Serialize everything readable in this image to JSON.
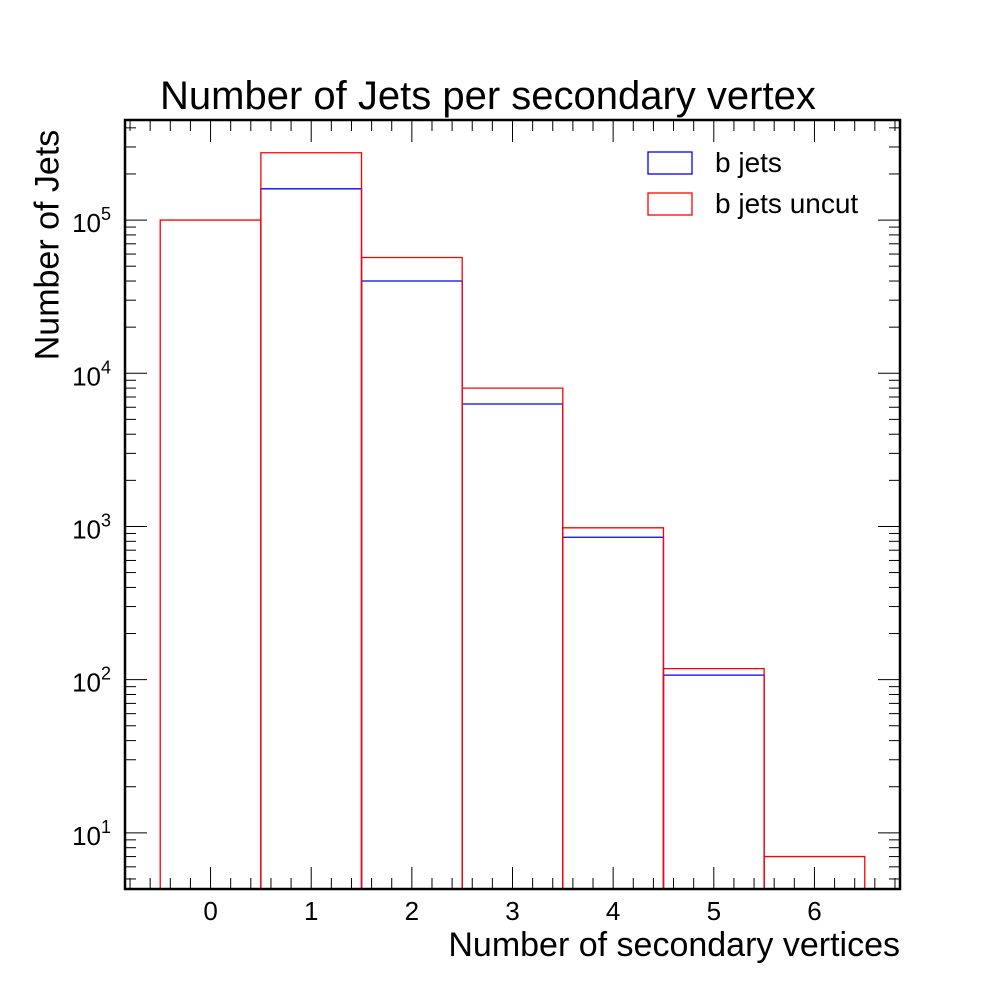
{
  "chart_data": {
    "type": "bar",
    "title": "Number of Jets per secondary vertex",
    "xlabel": "Number of secondary vertices",
    "ylabel": "Number of Jets",
    "y_scale": "log",
    "xlim": [
      -0.85,
      6.85
    ],
    "ylim": [
      4.3,
      450000
    ],
    "bin_width": 1,
    "categories": [
      "0",
      "1",
      "2",
      "3",
      "4",
      "5",
      "6"
    ],
    "x_ticks": [
      "0",
      "1",
      "2",
      "3",
      "4",
      "5",
      "6"
    ],
    "y_ticks": [
      {
        "base": "10",
        "exp": "1",
        "value": 10
      },
      {
        "base": "10",
        "exp": "2",
        "value": 100
      },
      {
        "base": "10",
        "exp": "3",
        "value": 1000
      },
      {
        "base": "10",
        "exp": "4",
        "value": 10000
      },
      {
        "base": "10",
        "exp": "5",
        "value": 100000
      }
    ],
    "series": [
      {
        "name": "b jets",
        "color": "#0000ff",
        "values": [
          0,
          160000,
          40000,
          6300,
          850,
          107,
          0
        ]
      },
      {
        "name": "b jets uncut",
        "color": "#ff0000",
        "values": [
          100000,
          275000,
          57000,
          8000,
          980,
          118,
          7
        ]
      }
    ],
    "legend": {
      "position": "top-right"
    },
    "grid": false,
    "style": "step histogram, unfilled"
  }
}
